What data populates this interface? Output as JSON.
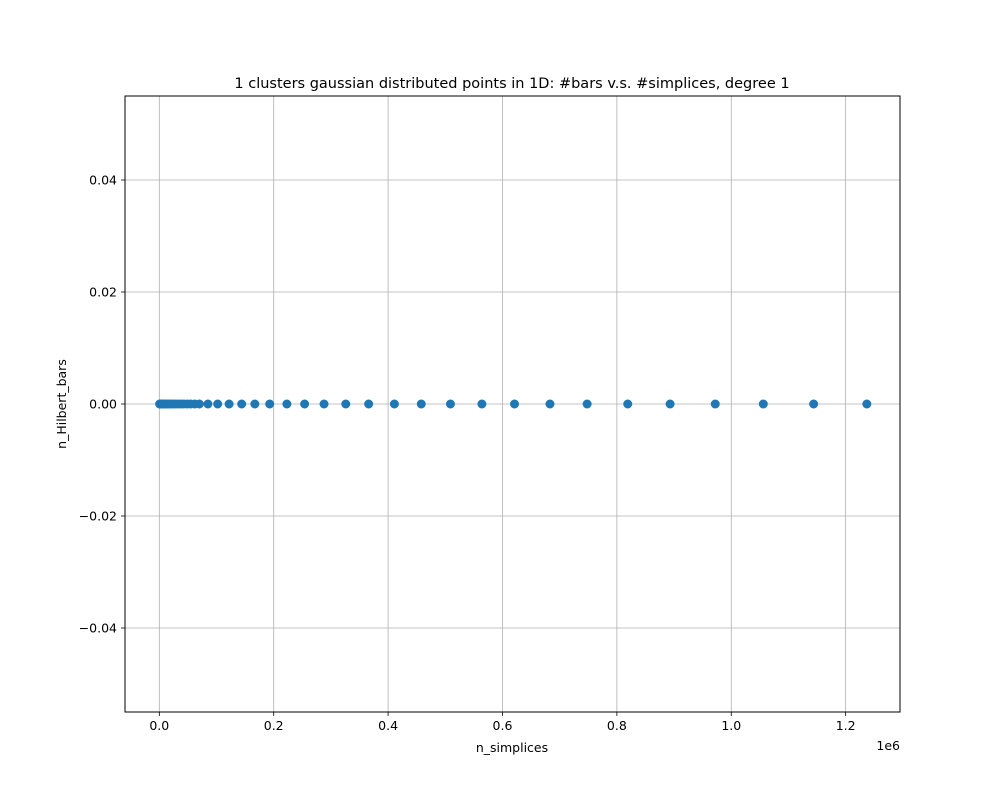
{
  "chart_data": {
    "type": "scatter",
    "title": "1 clusters gaussian distributed points in 1D: #bars v.s. #simplices, degree 1",
    "xlabel": "n_simplices",
    "ylabel": "n_Hilbert_bars",
    "x_offset_label": "1e6",
    "x_scale_factor": 1000000,
    "xlim": [
      -60000,
      1295000
    ],
    "ylim": [
      -0.055,
      0.055
    ],
    "xticks": [
      0,
      200000,
      400000,
      600000,
      800000,
      1000000,
      1200000
    ],
    "xtick_labels": [
      "0.0",
      "0.2",
      "0.4",
      "0.6",
      "0.8",
      "1.0",
      "1.2"
    ],
    "yticks": [
      -0.04,
      -0.02,
      0.0,
      0.02,
      0.04
    ],
    "ytick_labels": [
      "−0.04",
      "−0.02",
      "0.00",
      "0.02",
      "0.04"
    ],
    "grid": true,
    "marker_color": "#1f77b4",
    "series": [
      {
        "x": [
          500,
          1500,
          3000,
          5000,
          7000,
          9500,
          12000,
          15000,
          18000,
          21500,
          25000,
          29000,
          33500,
          38000,
          43000,
          49000,
          55000,
          62000,
          70000,
          85000,
          102000,
          122000,
          144000,
          167000,
          193000,
          223000,
          254000,
          288000,
          326000,
          366000,
          411000,
          458000,
          509000,
          564000,
          621000,
          683000,
          748000,
          819000,
          893000,
          972000,
          1056000,
          1144000,
          1237000
        ],
        "y": [
          0,
          0,
          0,
          0,
          0,
          0,
          0,
          0,
          0,
          0,
          0,
          0,
          0,
          0,
          0,
          0,
          0,
          0,
          0,
          0,
          0,
          0,
          0,
          0,
          0,
          0,
          0,
          0,
          0,
          0,
          0,
          0,
          0,
          0,
          0,
          0,
          0,
          0,
          0,
          0,
          0,
          0,
          0
        ]
      }
    ]
  }
}
